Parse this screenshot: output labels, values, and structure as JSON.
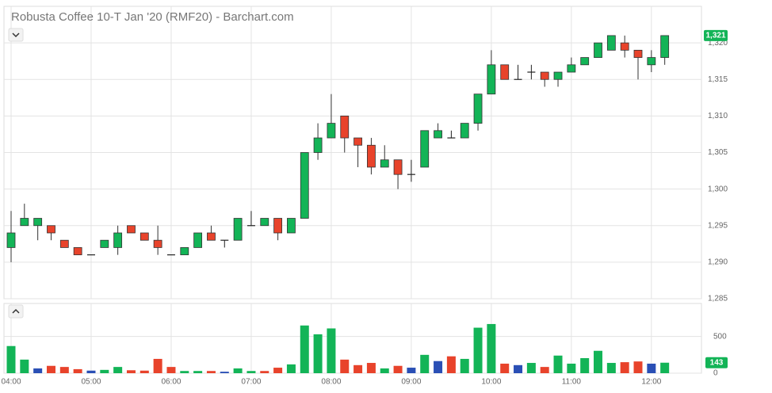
{
  "chart_data": {
    "type": "candlestick",
    "title": "Robusta Coffee 10-T Jan '20 (RMF20) - Barchart.com",
    "x": [
      "04:00",
      null,
      null,
      null,
      null,
      null,
      "05:00",
      null,
      null,
      null,
      null,
      null,
      "06:00",
      null,
      null,
      null,
      null,
      null,
      "07:00",
      null,
      null,
      null,
      null,
      null,
      "08:00",
      null,
      null,
      null,
      null,
      null,
      "09:00",
      null,
      null,
      null,
      null,
      null,
      "10:00",
      null,
      null,
      null,
      null,
      null,
      "11:00",
      null,
      null,
      null,
      null,
      null,
      "12:00",
      null
    ],
    "open": [
      1292,
      1295,
      1295,
      1295,
      1293,
      1292,
      1291,
      1292,
      1292,
      1295,
      1294,
      1293,
      1291,
      1291,
      1292,
      1294,
      1293,
      1293,
      1295,
      1295,
      1296,
      1294,
      1296,
      1305,
      1307,
      1310,
      1307,
      1306,
      1303,
      1304,
      1302,
      1303,
      1307,
      1307,
      1307,
      1309,
      1313,
      1317,
      1315,
      1316,
      1316,
      1315,
      1316,
      1317,
      1318,
      1319,
      1320,
      1319,
      1317,
      1318
    ],
    "high": [
      1297,
      1298,
      1296,
      1295,
      1293,
      1292,
      1291,
      1293,
      1295,
      1295,
      1294,
      1295,
      1291,
      1292,
      1294,
      1295,
      1293,
      1296,
      1297,
      1296,
      1296,
      1296,
      1305,
      1309,
      1313,
      1310,
      1307,
      1307,
      1306,
      1304,
      1304,
      1308,
      1309,
      1308,
      1309,
      1313,
      1319,
      1317,
      1317,
      1317,
      1316,
      1316,
      1318,
      1318,
      1320,
      1321,
      1321,
      1319,
      1319,
      1321
    ],
    "low": [
      1290,
      1295,
      1293,
      1293,
      1292,
      1291,
      1291,
      1292,
      1291,
      1294,
      1293,
      1291,
      1291,
      1291,
      1292,
      1293,
      1292,
      1293,
      1295,
      1295,
      1293,
      1294,
      1296,
      1304,
      1307,
      1305,
      1303,
      1302,
      1303,
      1300,
      1301,
      1303,
      1307,
      1307,
      1307,
      1308,
      1313,
      1315,
      1315,
      1315,
      1314,
      1314,
      1316,
      1317,
      1318,
      1319,
      1318,
      1315,
      1316,
      1317
    ],
    "close": [
      1294,
      1296,
      1296,
      1294,
      1292,
      1291,
      1291,
      1293,
      1294,
      1294,
      1293,
      1292,
      1291,
      1292,
      1294,
      1293,
      1293,
      1296,
      1295,
      1296,
      1294,
      1296,
      1305,
      1307,
      1309,
      1307,
      1306,
      1303,
      1304,
      1302,
      1302,
      1308,
      1308,
      1307,
      1309,
      1313,
      1317,
      1315,
      1315,
      1316,
      1315,
      1316,
      1317,
      1318,
      1320,
      1321,
      1319,
      1318,
      1318,
      1321
    ],
    "up_color": "#13b457",
    "down_color": "#e8432b",
    "flat_color": "#222222",
    "last_price_label": "1,321",
    "ylim": [
      1285,
      1325
    ],
    "yticks": [
      {
        "value": 1285,
        "label": "1,285"
      },
      {
        "value": 1290,
        "label": "1,290"
      },
      {
        "value": 1295,
        "label": "1,295"
      },
      {
        "value": 1300,
        "label": "1,300"
      },
      {
        "value": 1305,
        "label": "1,305"
      },
      {
        "value": 1310,
        "label": "1,310"
      },
      {
        "value": 1315,
        "label": "1,315"
      },
      {
        "value": 1320,
        "label": "1,320"
      }
    ],
    "grid": true,
    "volume": {
      "values": [
        370,
        185,
        65,
        100,
        85,
        55,
        35,
        45,
        85,
        40,
        35,
        195,
        85,
        30,
        30,
        30,
        20,
        65,
        30,
        30,
        75,
        120,
        650,
        530,
        610,
        185,
        110,
        140,
        65,
        100,
        75,
        250,
        165,
        230,
        195,
        620,
        670,
        130,
        110,
        140,
        85,
        240,
        130,
        205,
        305,
        140,
        150,
        160,
        130,
        143
      ],
      "colors": [
        "#13b457",
        "#13b457",
        "#2a4fb5",
        "#e8432b",
        "#e8432b",
        "#e8432b",
        "#2a4fb5",
        "#13b457",
        "#13b457",
        "#e8432b",
        "#e8432b",
        "#e8432b",
        "#e8432b",
        "#13b457",
        "#13b457",
        "#e8432b",
        "#2a4fb5",
        "#13b457",
        "#13b457",
        "#e8432b",
        "#e8432b",
        "#13b457",
        "#13b457",
        "#13b457",
        "#13b457",
        "#e8432b",
        "#e8432b",
        "#e8432b",
        "#13b457",
        "#e8432b",
        "#2a4fb5",
        "#13b457",
        "#2a4fb5",
        "#e8432b",
        "#13b457",
        "#13b457",
        "#13b457",
        "#e8432b",
        "#2a4fb5",
        "#13b457",
        "#e8432b",
        "#13b457",
        "#13b457",
        "#13b457",
        "#13b457",
        "#13b457",
        "#e8432b",
        "#e8432b",
        "#2a4fb5",
        "#13b457"
      ],
      "ylim": [
        0,
        950
      ],
      "yticks": [
        0,
        500
      ]
    }
  }
}
